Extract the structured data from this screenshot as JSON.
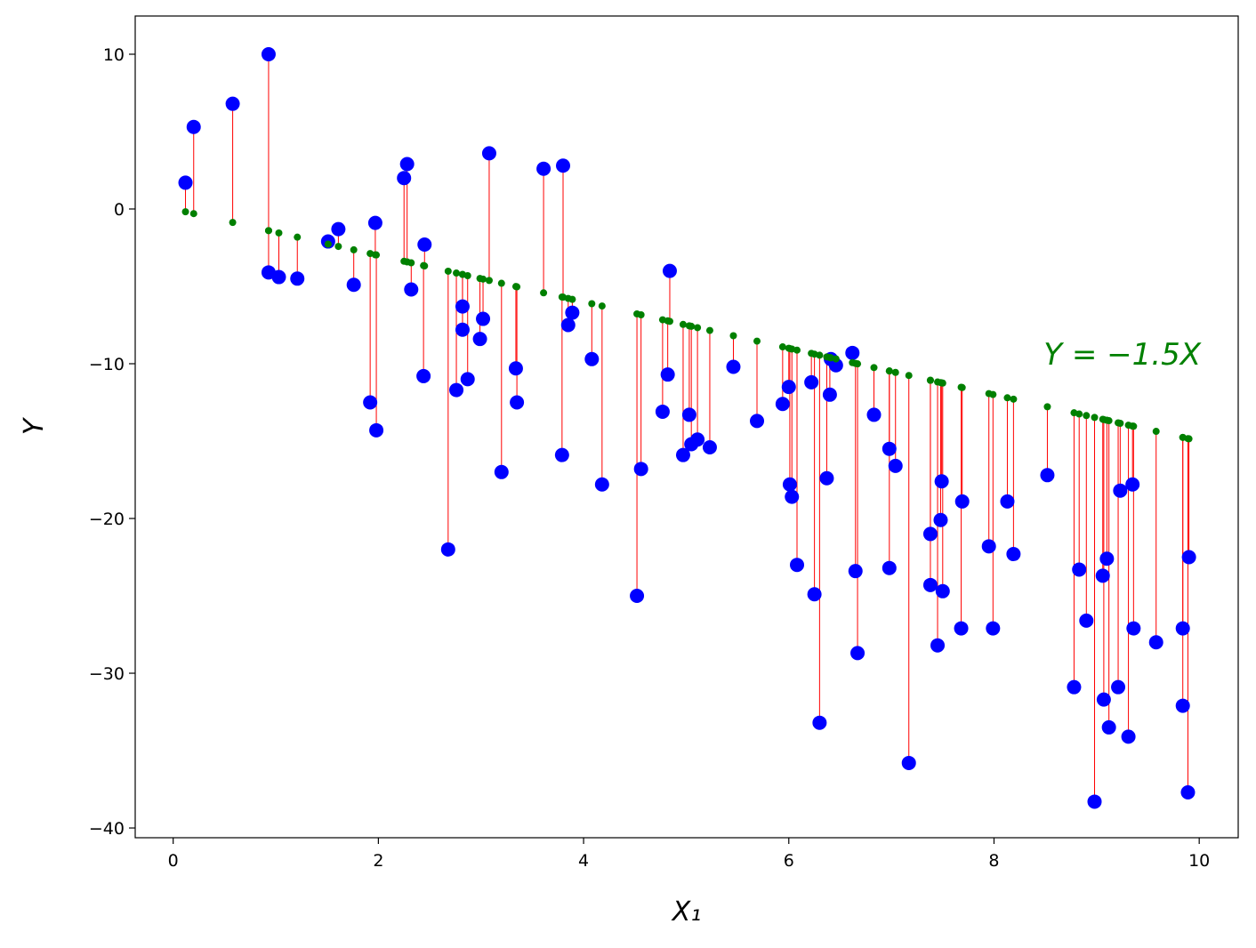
{
  "chart_data": {
    "type": "scatter",
    "xlabel": "X₁",
    "ylabel": "Y",
    "annotation": "Y = −1.5X",
    "color": "blue",
    "fit_color": "green",
    "residual_color": "red",
    "xlim": [
      -0.37,
      10.38
    ],
    "ylim": [
      -40.63,
      12.47
    ],
    "xticks": [
      0,
      2,
      4,
      6,
      8,
      10
    ],
    "yticks": [
      {
        "value": -40,
        "label": "−40"
      },
      {
        "value": -30,
        "label": "−30"
      },
      {
        "value": -20,
        "label": "−20"
      },
      {
        "value": -10,
        "label": "−10"
      },
      0,
      10
    ],
    "x": [
      0.12,
      0.2,
      0.58,
      0.93,
      0.93,
      1.03,
      1.21,
      1.51,
      1.61,
      1.76,
      1.92,
      1.97,
      1.98,
      2.25,
      2.28,
      2.32,
      2.44,
      2.45,
      2.68,
      2.76,
      2.82,
      2.82,
      2.87,
      2.99,
      3.02,
      3.08,
      3.2,
      3.34,
      3.35,
      3.61,
      3.8,
      3.79,
      3.85,
      3.89,
      4.08,
      4.18,
      4.52,
      4.56,
      4.77,
      4.82,
      4.84,
      4.97,
      5.03,
      5.05,
      5.11,
      5.23,
      5.46,
      5.69,
      5.94,
      6.0,
      6.01,
      6.03,
      6.08,
      6.22,
      6.25,
      6.3,
      6.37,
      6.4,
      6.41,
      6.46,
      6.62,
      6.65,
      6.67,
      6.83,
      6.98,
      6.98,
      7.04,
      7.17,
      7.38,
      7.38,
      7.45,
      7.48,
      7.49,
      7.5,
      7.68,
      7.69,
      7.95,
      7.99,
      8.13,
      8.19,
      8.52,
      8.78,
      8.83,
      8.9,
      8.98,
      9.06,
      9.07,
      9.1,
      9.12,
      9.21,
      9.23,
      9.31,
      9.35,
      9.36,
      9.58,
      9.84,
      9.84,
      9.89,
      9.9
    ],
    "y": [
      1.7,
      5.3,
      6.8,
      10,
      -4.1,
      -4.4,
      -4.5,
      -2.1,
      -1.3,
      -4.9,
      -12.5,
      -0.9,
      -14.3,
      2.0,
      2.9,
      -5.2,
      -10.8,
      -2.3,
      -22.0,
      -11.7,
      -6.3,
      -7.8,
      -11.0,
      -8.4,
      -7.1,
      3.6,
      -17.0,
      -10.3,
      -12.5,
      2.6,
      2.8,
      -15.9,
      -7.5,
      -6.7,
      -9.7,
      -17.8,
      -25.0,
      -16.8,
      -13.1,
      -10.7,
      -4.0,
      -15.9,
      -13.3,
      -15.2,
      -14.9,
      -15.4,
      -10.2,
      -13.7,
      -12.6,
      -11.5,
      -17.8,
      -18.6,
      -23.0,
      -11.2,
      -24.9,
      -33.2,
      -17.4,
      -12.0,
      -9.7,
      -10.1,
      -9.3,
      -23.4,
      -28.7,
      -13.3,
      -15.5,
      -23.2,
      -16.6,
      -35.8,
      -21.0,
      -24.3,
      -28.2,
      -20.1,
      -17.6,
      -24.7,
      -27.1,
      -18.9,
      -21.8,
      -27.1,
      -18.9,
      -22.3,
      -17.2,
      -30.9,
      -23.3,
      -26.6,
      -38.3,
      -23.7,
      -31.7,
      -22.6,
      -33.5,
      -30.9,
      -18.2,
      -34.1,
      -17.8,
      -27.1,
      -28.0,
      -27.1,
      -32.1,
      -37.7,
      -22.5
    ],
    "y_fit": [
      -0.18,
      -0.3,
      -0.87,
      -1.4,
      -1.4,
      -1.55,
      -1.82,
      -2.27,
      -2.42,
      -2.64,
      -2.88,
      -2.96,
      -2.97,
      -3.38,
      -3.42,
      -3.48,
      -3.66,
      -3.68,
      -4.02,
      -4.14,
      -4.23,
      -4.23,
      -4.31,
      -4.49,
      -4.53,
      -4.62,
      -4.8,
      -5.01,
      -5.03,
      -5.42,
      -5.7,
      -5.69,
      -5.78,
      -5.84,
      -6.12,
      -6.27,
      -6.78,
      -6.84,
      -7.16,
      -7.23,
      -7.26,
      -7.46,
      -7.55,
      -7.58,
      -7.67,
      -7.85,
      -8.19,
      -8.54,
      -8.91,
      -9.0,
      -9.02,
      -9.05,
      -9.12,
      -9.33,
      -9.38,
      -9.45,
      -9.56,
      -9.6,
      -9.62,
      -9.69,
      -9.93,
      -9.98,
      -10.01,
      -10.25,
      -10.47,
      -10.47,
      -10.56,
      -10.76,
      -11.07,
      -11.07,
      -11.18,
      -11.22,
      -11.24,
      -11.25,
      -11.52,
      -11.54,
      -11.93,
      -11.99,
      -12.2,
      -12.29,
      -12.78,
      -13.17,
      -13.25,
      -13.35,
      -13.47,
      -13.59,
      -13.61,
      -13.65,
      -13.68,
      -13.82,
      -13.85,
      -13.97,
      -14.03,
      -14.04,
      -14.37,
      -14.76,
      -14.76,
      -14.84,
      -14.85
    ]
  }
}
